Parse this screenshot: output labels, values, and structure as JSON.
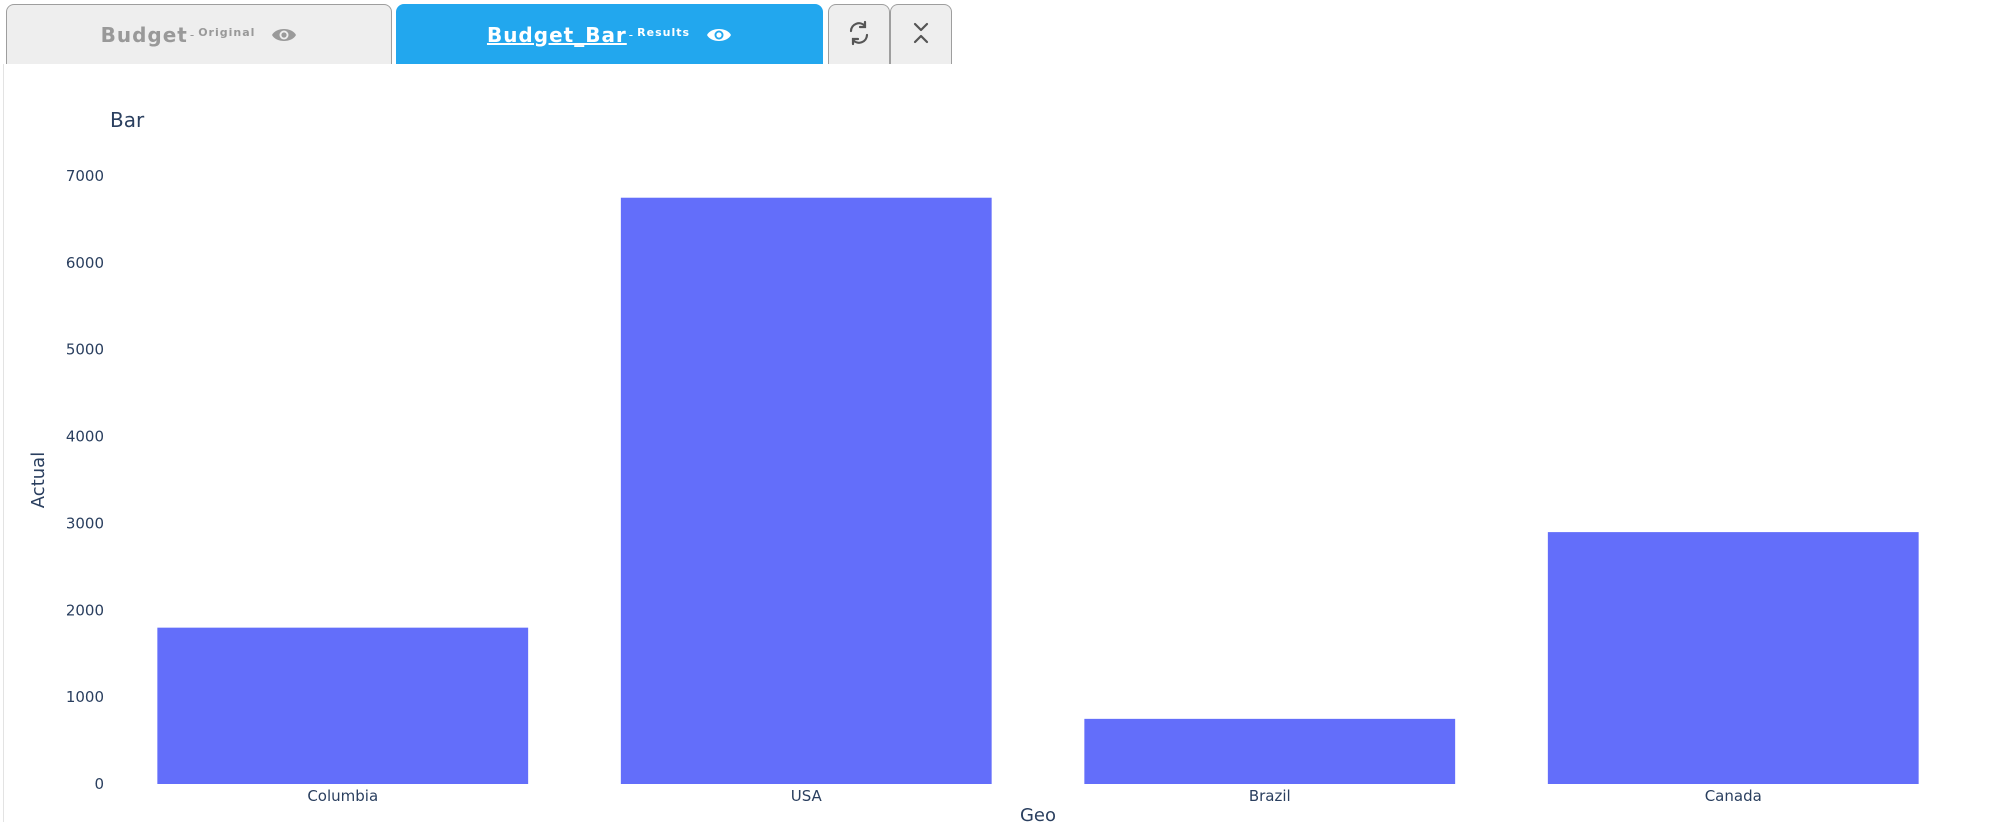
{
  "tabs": [
    {
      "title": "Budget",
      "separator": "-",
      "subtitle": "Original",
      "icon": "eye-icon",
      "active": false
    },
    {
      "title": "Budget_Bar",
      "separator": "-",
      "subtitle": "Results",
      "icon": "eye-icon",
      "active": true
    }
  ],
  "toolbar": {
    "refresh_icon": "refresh-icon",
    "collapse_icon": "collapse-icon"
  },
  "colors": {
    "active_tab": "#22a7ee",
    "inactive_tab": "#eeeeee",
    "bar": "#636efa",
    "text": "#2a3f5f"
  },
  "chart_data": {
    "type": "bar",
    "title": "Bar",
    "xlabel": "Geo",
    "ylabel": "Actual",
    "categories": [
      "Columbia",
      "USA",
      "Brazil",
      "Canada"
    ],
    "values": [
      1800,
      6750,
      750,
      2900
    ],
    "ylim": [
      0,
      7000
    ],
    "yticks": [
      0,
      1000,
      2000,
      3000,
      4000,
      5000,
      6000,
      7000
    ],
    "grid": false,
    "legend": false,
    "bar_color": "#636efa"
  }
}
